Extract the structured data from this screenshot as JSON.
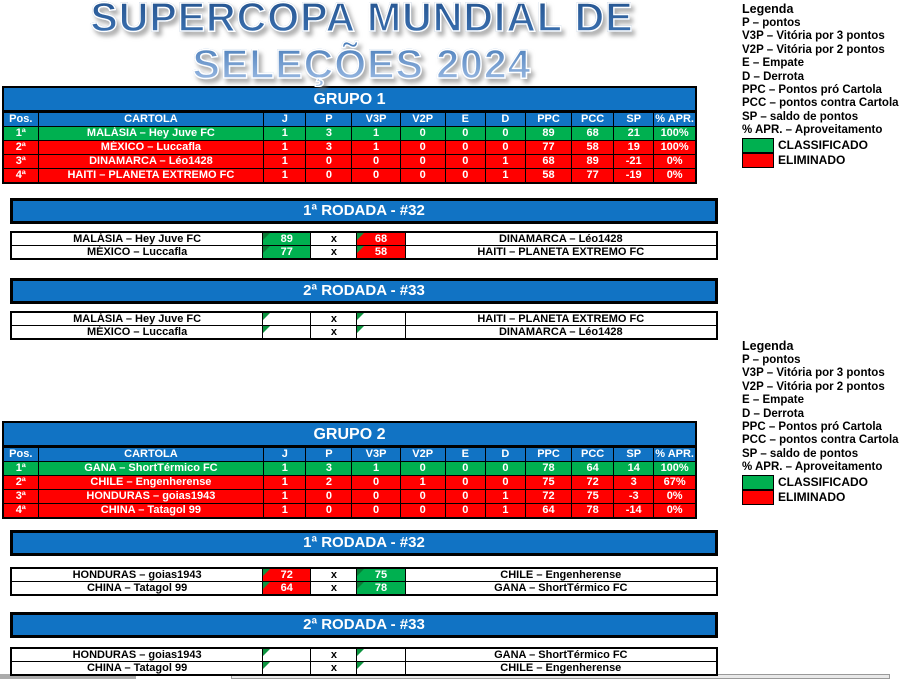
{
  "title": {
    "line1": "SUPERCOPA MUNDIAL DE",
    "line2": "SELEÇÕES 2024"
  },
  "legend": {
    "heading": "Legenda",
    "items": [
      "P – pontos",
      "V3P – Vitória por 3 pontos",
      "V2P – Vitória por 2 pontos",
      "E – Empate",
      "D – Derrota",
      "PPC – Pontos pró Cartola",
      "PCC – pontos contra Cartola",
      "SP – saldo de pontos",
      "% APR. – Aproveitamento"
    ],
    "classified": "CLASSIFICADO",
    "eliminated": "ELIMINADO"
  },
  "standings_headers": [
    "Pos.",
    "CARTOLA",
    "J",
    "P",
    "V3P",
    "V2P",
    "E",
    "D",
    "PPC",
    "PCC",
    "SP",
    "% APR."
  ],
  "match_separator": "x",
  "colors": {
    "banner_blue": "#1173C4",
    "classified_green": "#00B050",
    "eliminated_red": "#FF0000"
  },
  "groups": [
    {
      "title": "GRUPO 1",
      "rows": [
        {
          "pos": "1ª",
          "cartola": "MALÁSIA –  Hey Juve FC",
          "values": [
            "1",
            "3",
            "1",
            "0",
            "0",
            "0",
            "89",
            "68",
            "21",
            "100%"
          ],
          "status": "classified"
        },
        {
          "pos": "2ª",
          "cartola": "MÉXICO – Luccafla",
          "values": [
            "1",
            "3",
            "1",
            "0",
            "0",
            "0",
            "77",
            "58",
            "19",
            "100%"
          ],
          "status": "eliminated"
        },
        {
          "pos": "3ª",
          "cartola": "DINAMARCA – Léo1428",
          "values": [
            "1",
            "0",
            "0",
            "0",
            "0",
            "1",
            "68",
            "89",
            "-21",
            "0%"
          ],
          "status": "eliminated"
        },
        {
          "pos": "4ª",
          "cartola": "HAITI – PLANETA EXTREMO FC",
          "values": [
            "1",
            "0",
            "0",
            "0",
            "0",
            "1",
            "58",
            "77",
            "-19",
            "0%"
          ],
          "status": "eliminated"
        }
      ],
      "rounds": [
        {
          "title": "1ª RODADA - #32",
          "matches": [
            {
              "home": "MALÁSIA –  Hey Juve FC",
              "home_score": "89",
              "home_result": "win",
              "away_score": "68",
              "away_result": "loss",
              "away": "DINAMARCA – Léo1428"
            },
            {
              "home": "MÉXICO – Luccafla",
              "home_score": "77",
              "home_result": "win",
              "away_score": "58",
              "away_result": "loss",
              "away": "HAITI – PLANETA EXTREMO FC"
            }
          ]
        },
        {
          "title": "2ª RODADA - #33",
          "matches": [
            {
              "home": "MALÁSIA –  Hey Juve FC",
              "home_score": "",
              "home_result": "pending",
              "away_score": "",
              "away_result": "pending",
              "away": "HAITI – PLANETA EXTREMO FC"
            },
            {
              "home": "MÉXICO – Luccafla",
              "home_score": "",
              "home_result": "pending",
              "away_score": "",
              "away_result": "pending",
              "away": "DINAMARCA – Léo1428"
            }
          ]
        }
      ]
    },
    {
      "title": "GRUPO 2",
      "rows": [
        {
          "pos": "1ª",
          "cartola": "GANA – ShortTérmico FC",
          "values": [
            "1",
            "3",
            "1",
            "0",
            "0",
            "0",
            "78",
            "64",
            "14",
            "100%"
          ],
          "status": "classified"
        },
        {
          "pos": "2ª",
          "cartola": "CHILE – Engenherense",
          "values": [
            "1",
            "2",
            "0",
            "1",
            "0",
            "0",
            "75",
            "72",
            "3",
            "67%"
          ],
          "status": "eliminated"
        },
        {
          "pos": "3ª",
          "cartola": "HONDURAS – goias1943",
          "values": [
            "1",
            "0",
            "0",
            "0",
            "0",
            "1",
            "72",
            "75",
            "-3",
            "0%"
          ],
          "status": "eliminated"
        },
        {
          "pos": "4ª",
          "cartola": "CHINA – Tatagol 99",
          "values": [
            "1",
            "0",
            "0",
            "0",
            "0",
            "1",
            "64",
            "78",
            "-14",
            "0%"
          ],
          "status": "eliminated"
        }
      ],
      "rounds": [
        {
          "title": "1ª RODADA - #32",
          "matches": [
            {
              "home": "HONDURAS – goias1943",
              "home_score": "72",
              "home_result": "loss",
              "away_score": "75",
              "away_result": "win",
              "away": "CHILE – Engenherense"
            },
            {
              "home": "CHINA – Tatagol 99",
              "home_score": "64",
              "home_result": "loss",
              "away_score": "78",
              "away_result": "win",
              "away": "GANA – ShortTérmico FC"
            }
          ]
        },
        {
          "title": "2ª RODADA - #33",
          "matches": [
            {
              "home": "HONDURAS – goias1943",
              "home_score": "",
              "home_result": "pending",
              "away_score": "",
              "away_result": "pending",
              "away": "GANA – ShortTérmico FC"
            },
            {
              "home": "CHINA – Tatagol 99",
              "home_score": "",
              "home_result": "pending",
              "away_score": "",
              "away_result": "pending",
              "away": "CHILE – Engenherense"
            }
          ]
        }
      ]
    }
  ]
}
